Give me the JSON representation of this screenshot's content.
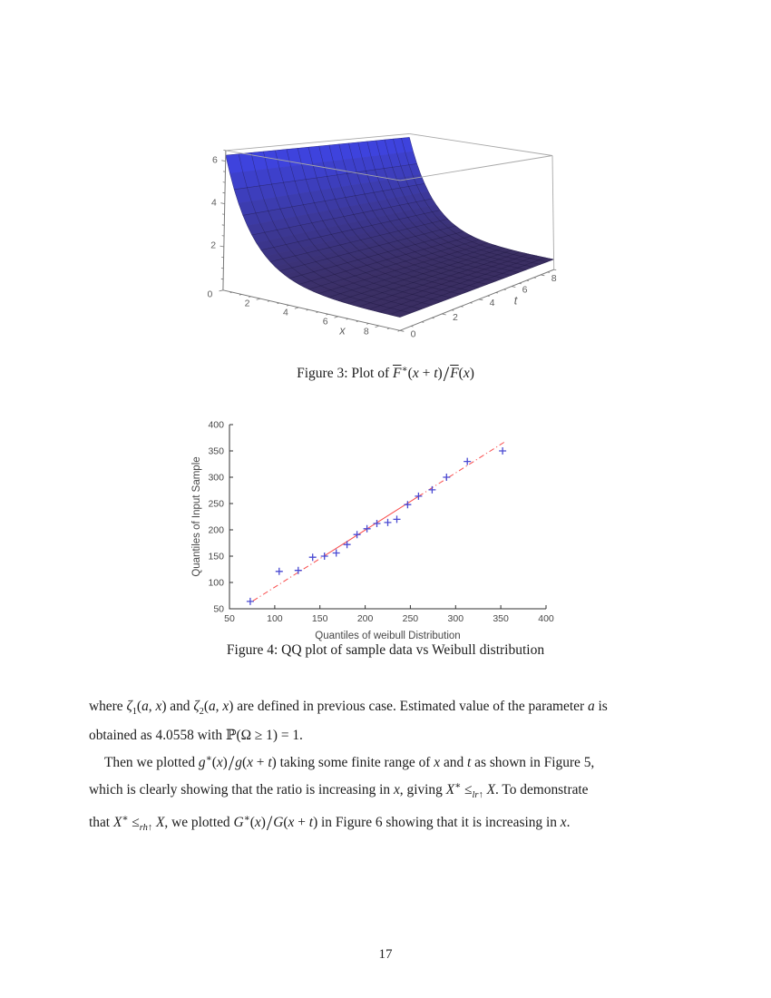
{
  "page": {
    "number": "17"
  },
  "figures": {
    "fig3_caption_html": "Figure 3: Plot of <span class='ov'><i>F</i></span><sup>&#8727;</sup>(<i>x</i> + <i>t</i>)<span class='bs'>/</span><span class='ov'><i>F</i></span>(<i>x</i>)",
    "fig4_caption_html": "Figure 4: QQ plot of sample data vs Weibull distribution"
  },
  "body": {
    "lines": [
      "where <i>&#950;</i><sub>1</sub>(<i>a</i>, <i>x</i>) and <i>&#950;</i><sub>2</sub>(<i>a</i>, <i>x</i>) are defined in previous case.  Estimated value of the parameter <i>a</i> is",
      "obtained as 4.0558 with &#8473;(&#937; &#8805; 1) = 1.",
      "Then we plotted <i>g</i><sup>&#8727;</sup>(<i>x</i>)<span class='bs'>/</span><i>g</i>(<i>x</i> + <i>t</i>) taking some finite range of <i>x</i> and <i>t</i> as shown in Figure 5,",
      "which is clearly showing that the ratio is increasing in <i>x</i>, giving <i>X</i><sup>&#8727;</sup> &#8804;<sub><i>lr</i>&#8593;</sub> <i>X</i>.  To demonstrate",
      "that <i>X</i><sup>&#8727;</sup> &#8804;<sub><i>rh</i>&#8593;</sub> <i>X</i>, we plotted <i>G</i><sup>&#8727;</sup>(<i>x</i>)<span class='bs'>/</span><i>G</i>(<i>x</i> + <i>t</i>) in Figure 6 showing that it is increasing in <i>x</i>."
    ]
  },
  "chart_data": [
    {
      "id": "figure3-surface",
      "type": "surface",
      "title": "Plot of Fbar*(x+t)/Fbar(x)",
      "xlabel": "x",
      "tlabel": "t",
      "x_range": [
        0,
        9
      ],
      "t_range": [
        0,
        9
      ],
      "z_range": [
        0,
        6.5
      ],
      "x_ticks": [
        0,
        2,
        4,
        6,
        8
      ],
      "t_ticks": [
        0,
        2,
        4,
        6,
        8
      ],
      "z_ticks": [
        2,
        4,
        6
      ],
      "minor_tick_step": 0.5,
      "mesh_step_x": 0.5,
      "mesh_step_t": 0.5,
      "surface_model": {
        "formula": "z(x,t) = offset + amplitude*exp(-decay*x)",
        "offset": 0.55,
        "amplitude": 5.73,
        "decay": 0.62
      },
      "ridge_height": 6.28,
      "color_high": "#3e46ec",
      "color_low": "#3a2c54",
      "mesh_color": "rgba(25,20,60,0.5)",
      "frame_color": "#a8a8a8",
      "axis_color": "#787878",
      "label_color": "#5d5d5d"
    },
    {
      "id": "figure4-qq",
      "type": "scatter",
      "xlabel": "Quantiles of weibull Distribution",
      "ylabel": "Quantiles of Input Sample",
      "xlim": [
        50,
        400
      ],
      "ylim": [
        50,
        400
      ],
      "x_ticks": [
        50,
        100,
        150,
        200,
        250,
        300,
        350,
        400
      ],
      "y_ticks": [
        50,
        100,
        150,
        200,
        250,
        300,
        350,
        400
      ],
      "points_x": [
        73,
        105,
        126,
        142,
        155,
        168,
        180,
        191,
        202,
        213,
        225,
        235,
        247,
        259,
        274,
        290,
        313,
        352
      ],
      "points_y": [
        64,
        121,
        123,
        148,
        150,
        156,
        172,
        191,
        202,
        212,
        214,
        220,
        248,
        264,
        276,
        300,
        330,
        350
      ],
      "marker": {
        "shape": "plus",
        "color": "#4a4ad2",
        "size": 8
      },
      "ref_line": {
        "x_start": 76,
        "y_start": 65,
        "x_end": 356,
        "y_end": 369,
        "solid_x1": 155,
        "solid_x2": 259,
        "color": "#f94d4d",
        "dash_style": "dash-dot"
      },
      "axis_color": "#303030",
      "tick_label_color": "#474747",
      "grid": false,
      "legend": "none"
    }
  ]
}
